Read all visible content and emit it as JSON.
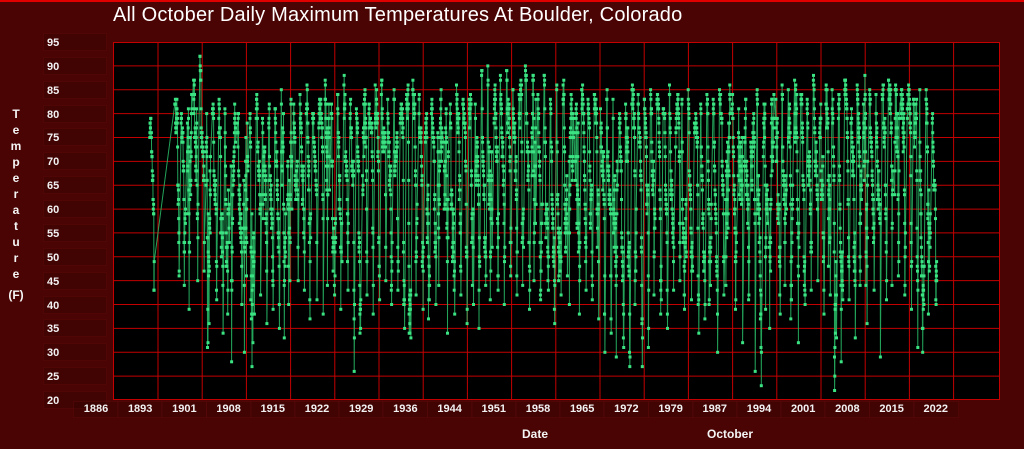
{
  "window": {
    "background_color": "#4a0404",
    "top_edge_color": "#e00000",
    "plot_background": "#000000",
    "grid_color": "#c40000",
    "marker_color": "#3be383",
    "line_color": "#27b564",
    "text_color": "#ffffff"
  },
  "header": {
    "title": "All October Daily Maximum Temperatures At Boulder, Colorado"
  },
  "y_axis": {
    "name_vertical": "T\ne\nm\np\ne\nr\na\nt\nu\nr\ne",
    "unit_label": "(F)",
    "tick_labels": [
      "95",
      "90",
      "85",
      "80",
      "75",
      "70",
      "65",
      "60",
      "55",
      "50",
      "45",
      "40",
      "35",
      "30",
      "25",
      "20"
    ]
  },
  "x_axis": {
    "caption": "Date",
    "annotation": "October",
    "tick_labels": [
      "1886",
      "1893",
      "1901",
      "1908",
      "1915",
      "1922",
      "1929",
      "1936",
      "1944",
      "1951",
      "1958",
      "1965",
      "1972",
      "1979",
      "1987",
      "1994",
      "2001",
      "2008",
      "2015",
      "2022"
    ]
  },
  "chart_data": {
    "type": "scatter",
    "title": "All October Daily Maximum Temperatures At Boulder, Colorado",
    "xlabel": "Date",
    "x_annotation": "October",
    "ylabel": "Temperature (F)",
    "ylim": [
      20,
      95
    ],
    "ytick_step": 5,
    "xlim_years": [
      1886,
      2022
    ],
    "xticks": [
      1886,
      1893,
      1901,
      1908,
      1915,
      1922,
      1929,
      1936,
      1944,
      1951,
      1958,
      1965,
      1972,
      1979,
      1987,
      1994,
      2001,
      2008,
      2015,
      2022
    ],
    "grid": "on",
    "legend": "none",
    "series_name": "October daily maximum temperature",
    "days_per_year": 31,
    "points_connected": true,
    "missing_years": [
      1898,
      1899,
      1900
    ],
    "yearly_envelope_note": "per year: [year, min daily max F, max daily max F] estimated from plot envelope",
    "yearly_envelope": [
      [
        1897,
        43,
        79
      ],
      [
        1901,
        46,
        83
      ],
      [
        1902,
        44,
        80
      ],
      [
        1903,
        39,
        84
      ],
      [
        1904,
        45,
        87
      ],
      [
        1905,
        47,
        92
      ],
      [
        1906,
        31,
        80
      ],
      [
        1907,
        41,
        82
      ],
      [
        1908,
        34,
        83
      ],
      [
        1909,
        38,
        81
      ],
      [
        1910,
        28,
        82
      ],
      [
        1911,
        40,
        80
      ],
      [
        1912,
        30,
        78
      ],
      [
        1913,
        27,
        80
      ],
      [
        1914,
        42,
        84
      ],
      [
        1915,
        36,
        79
      ],
      [
        1916,
        39,
        82
      ],
      [
        1917,
        35,
        81
      ],
      [
        1918,
        33,
        85
      ],
      [
        1919,
        40,
        83
      ],
      [
        1920,
        45,
        82
      ],
      [
        1921,
        43,
        84
      ],
      [
        1922,
        37,
        86
      ],
      [
        1923,
        41,
        80
      ],
      [
        1924,
        38,
        83
      ],
      [
        1925,
        44,
        87
      ],
      [
        1926,
        42,
        82
      ],
      [
        1927,
        39,
        84
      ],
      [
        1928,
        43,
        88
      ],
      [
        1929,
        26,
        83
      ],
      [
        1930,
        34,
        81
      ],
      [
        1931,
        42,
        85
      ],
      [
        1932,
        38,
        82
      ],
      [
        1933,
        41,
        86
      ],
      [
        1934,
        45,
        87
      ],
      [
        1935,
        40,
        83
      ],
      [
        1936,
        43,
        85
      ],
      [
        1937,
        35,
        82
      ],
      [
        1938,
        33,
        86
      ],
      [
        1939,
        42,
        87
      ],
      [
        1940,
        39,
        84
      ],
      [
        1941,
        37,
        80
      ],
      [
        1942,
        40,
        83
      ],
      [
        1943,
        44,
        85
      ],
      [
        1944,
        34,
        81
      ],
      [
        1945,
        38,
        82
      ],
      [
        1946,
        42,
        86
      ],
      [
        1947,
        36,
        83
      ],
      [
        1948,
        40,
        84
      ],
      [
        1949,
        35,
        82
      ],
      [
        1950,
        44,
        89
      ],
      [
        1951,
        41,
        90
      ],
      [
        1952,
        43,
        86
      ],
      [
        1953,
        40,
        88
      ],
      [
        1954,
        46,
        89
      ],
      [
        1955,
        42,
        85
      ],
      [
        1956,
        44,
        87
      ],
      [
        1957,
        39,
        90
      ],
      [
        1958,
        45,
        88
      ],
      [
        1959,
        41,
        84
      ],
      [
        1960,
        43,
        88
      ],
      [
        1961,
        36,
        83
      ],
      [
        1962,
        42,
        86
      ],
      [
        1963,
        46,
        87
      ],
      [
        1964,
        40,
        84
      ],
      [
        1965,
        38,
        82
      ],
      [
        1966,
        43,
        86
      ],
      [
        1967,
        41,
        83
      ],
      [
        1968,
        37,
        84
      ],
      [
        1969,
        30,
        81
      ],
      [
        1970,
        34,
        85
      ],
      [
        1971,
        29,
        83
      ],
      [
        1972,
        31,
        80
      ],
      [
        1973,
        27,
        82
      ],
      [
        1974,
        40,
        86
      ],
      [
        1975,
        27,
        84
      ],
      [
        1976,
        31,
        83
      ],
      [
        1977,
        42,
        85
      ],
      [
        1978,
        38,
        84
      ],
      [
        1979,
        35,
        81
      ],
      [
        1980,
        43,
        86
      ],
      [
        1981,
        45,
        84
      ],
      [
        1982,
        39,
        83
      ],
      [
        1983,
        41,
        85
      ],
      [
        1984,
        34,
        80
      ],
      [
        1985,
        37,
        82
      ],
      [
        1986,
        40,
        84
      ],
      [
        1987,
        30,
        83
      ],
      [
        1988,
        42,
        85
      ],
      [
        1989,
        44,
        86
      ],
      [
        1990,
        39,
        84
      ],
      [
        1991,
        32,
        81
      ],
      [
        1992,
        41,
        83
      ],
      [
        1993,
        26,
        80
      ],
      [
        1994,
        23,
        85
      ],
      [
        1995,
        39,
        82
      ],
      [
        1996,
        35,
        84
      ],
      [
        1997,
        38,
        83
      ],
      [
        1998,
        44,
        86
      ],
      [
        1999,
        37,
        85
      ],
      [
        2000,
        32,
        87
      ],
      [
        2001,
        40,
        84
      ],
      [
        2002,
        43,
        83
      ],
      [
        2003,
        45,
        88
      ],
      [
        2004,
        38,
        82
      ],
      [
        2005,
        42,
        86
      ],
      [
        2006,
        22,
        85
      ],
      [
        2007,
        28,
        84
      ],
      [
        2008,
        41,
        87
      ],
      [
        2009,
        33,
        81
      ],
      [
        2010,
        44,
        86
      ],
      [
        2011,
        36,
        88
      ],
      [
        2012,
        43,
        85
      ],
      [
        2013,
        29,
        84
      ],
      [
        2014,
        41,
        86
      ],
      [
        2015,
        44,
        87
      ],
      [
        2016,
        46,
        86
      ],
      [
        2017,
        42,
        85
      ],
      [
        2018,
        39,
        86
      ],
      [
        2019,
        31,
        83
      ],
      [
        2020,
        30,
        85
      ],
      [
        2021,
        38,
        85
      ],
      [
        2022,
        40,
        80
      ]
    ]
  }
}
